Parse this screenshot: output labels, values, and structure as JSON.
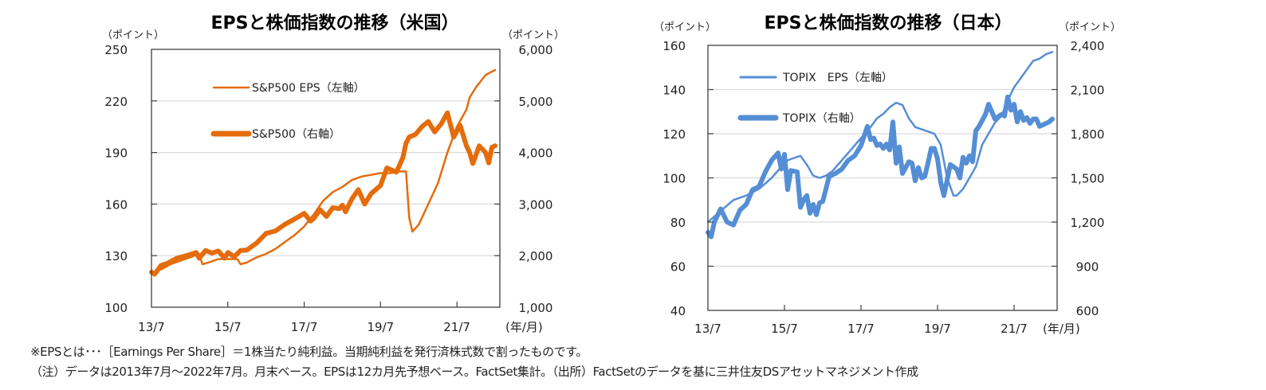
{
  "chart_data": [
    {
      "type": "line",
      "title": "EPSと株価指数の推移（米国）",
      "left_unit": "（ポイント）",
      "right_unit": "（ポイント）",
      "xlabel": "(年/月)",
      "x_ticks": [
        "13/7",
        "15/7",
        "17/7",
        "19/7",
        "21/7"
      ],
      "x_range": [
        "2013-07",
        "2022-07"
      ],
      "left_axis": {
        "min": 100,
        "max": 250,
        "ticks": [
          "250",
          "220",
          "190",
          "160",
          "130",
          "100"
        ],
        "tick_values": [
          250,
          220,
          190,
          160,
          130,
          100
        ]
      },
      "right_axis": {
        "min": 1000,
        "max": 6000,
        "ticks": [
          "6,000",
          "5,000",
          "4,000",
          "3,000",
          "2,000",
          "1,000"
        ],
        "tick_values": [
          6000,
          5000,
          4000,
          3000,
          2000,
          1000
        ]
      },
      "grid": true,
      "color": "#E46C0A",
      "series": [
        {
          "name": "S&P500 EPS（左軸）",
          "axis": "left",
          "months_from_start": [
            0,
            3,
            6,
            9,
            12,
            15,
            16,
            18,
            21,
            24,
            27,
            28,
            30,
            33,
            36,
            39,
            42,
            45,
            48,
            51,
            54,
            57,
            60,
            63,
            66,
            69,
            72,
            75,
            78,
            80,
            81,
            82,
            84,
            87,
            90,
            93,
            96,
            99,
            100,
            102,
            105,
            108
          ],
          "values": [
            120,
            122,
            125,
            127,
            129,
            131,
            125,
            126,
            128,
            128,
            128,
            125,
            126,
            129,
            131,
            134,
            138,
            142,
            147,
            154,
            162,
            167,
            170,
            174,
            176,
            177,
            178,
            178,
            179,
            179,
            152,
            144,
            148,
            160,
            172,
            190,
            205,
            215,
            222,
            228,
            235,
            238
          ]
        },
        {
          "name": "S&P500（右軸）",
          "axis": "right",
          "months_from_start": [
            0,
            1,
            3,
            5,
            8,
            11,
            14,
            15,
            17,
            19,
            21,
            23,
            24,
            26,
            28,
            30,
            33,
            36,
            39,
            42,
            45,
            48,
            50,
            51,
            53,
            55,
            57,
            59,
            60,
            61,
            63,
            65,
            67,
            69,
            72,
            74,
            77,
            79,
            80,
            81,
            83,
            85,
            87,
            89,
            91,
            93,
            95,
            97,
            99,
            100,
            101,
            103,
            105,
            106,
            107,
            108
          ],
          "values": [
            1680,
            1640,
            1810,
            1850,
            1950,
            2000,
            2060,
            1950,
            2100,
            2050,
            2090,
            1950,
            2060,
            1980,
            2100,
            2110,
            2240,
            2430,
            2480,
            2610,
            2710,
            2820,
            2670,
            2720,
            2890,
            2760,
            2930,
            2910,
            2980,
            2850,
            3100,
            3280,
            3000,
            3200,
            3360,
            3700,
            3620,
            3900,
            4180,
            4300,
            4350,
            4500,
            4600,
            4400,
            4550,
            4770,
            4300,
            4530,
            4130,
            4000,
            3785,
            4130,
            4000,
            3800,
            4100,
            4130
          ]
        }
      ]
    },
    {
      "type": "line",
      "title": "EPSと株価指数の推移（日本）",
      "left_unit": "（ポイント）",
      "right_unit": "（ポイント）",
      "xlabel": "(年/月)",
      "x_ticks": [
        "13/7",
        "15/7",
        "17/7",
        "19/7",
        "21/7"
      ],
      "x_range": [
        "2013-07",
        "2022-07"
      ],
      "left_axis": {
        "min": 40,
        "max": 160,
        "ticks": [
          "160",
          "140",
          "120",
          "100",
          "80",
          "60",
          "40"
        ],
        "tick_values": [
          160,
          140,
          120,
          100,
          80,
          60,
          40
        ]
      },
      "right_axis": {
        "min": 600,
        "max": 2400,
        "ticks": [
          "2,400",
          "2,100",
          "1,800",
          "1,500",
          "1,200",
          "900",
          "600"
        ],
        "tick_values": [
          2400,
          2100,
          1800,
          1500,
          1200,
          900,
          600
        ]
      },
      "grid": true,
      "color": "#558ED5",
      "series": [
        {
          "name": "TOPIX　EPS（左軸）",
          "axis": "left",
          "months_from_start": [
            0,
            4,
            8,
            12,
            16,
            20,
            23,
            25,
            27,
            29,
            31,
            33,
            35,
            37,
            39,
            42,
            45,
            48,
            51,
            53,
            55,
            57,
            59,
            61,
            63,
            65,
            67,
            69,
            71,
            73,
            75,
            77,
            78,
            80,
            82,
            84,
            86,
            88,
            90,
            92,
            94,
            96,
            98,
            100,
            102,
            104,
            106,
            108
          ],
          "values": [
            80,
            85,
            90,
            92,
            95,
            100,
            105,
            108,
            109,
            110,
            106,
            101,
            100,
            101,
            103,
            108,
            113,
            118,
            123,
            127,
            129,
            132,
            134,
            133,
            127,
            123,
            122,
            121,
            120,
            115,
            100,
            92,
            92,
            95,
            100,
            105,
            115,
            120,
            125,
            128,
            135,
            141,
            145,
            149,
            153,
            154,
            156,
            157
          ],
          "values_scaled_note": ""
        },
        {
          "name": "TOPIX（右軸）",
          "axis": "right",
          "months_from_start": [
            0,
            1,
            2,
            4,
            6,
            8,
            10,
            12,
            14,
            16,
            18,
            20,
            22,
            23,
            24,
            25,
            26,
            28,
            29,
            30,
            31,
            32,
            33,
            34,
            35,
            36,
            38,
            40,
            42,
            44,
            46,
            48,
            50,
            51,
            52,
            53,
            54,
            55,
            56,
            57,
            58,
            59,
            60,
            61,
            62,
            63,
            64,
            65,
            66,
            67,
            68,
            69,
            70,
            71,
            72,
            73,
            74,
            76,
            78,
            79,
            80,
            81,
            82,
            83,
            84,
            85,
            86,
            87,
            88,
            90,
            92,
            93,
            94,
            95,
            96,
            97,
            98,
            99,
            100,
            101,
            102,
            103,
            104,
            105,
            106,
            107,
            108
          ],
          "values": [
            1130,
            1100,
            1200,
            1290,
            1200,
            1180,
            1280,
            1320,
            1420,
            1440,
            1540,
            1620,
            1670,
            1560,
            1660,
            1420,
            1550,
            1540,
            1300,
            1350,
            1380,
            1260,
            1320,
            1250,
            1330,
            1340,
            1510,
            1530,
            1560,
            1620,
            1650,
            1720,
            1850,
            1760,
            1770,
            1720,
            1730,
            1700,
            1730,
            1690,
            1880,
            1600,
            1710,
            1530,
            1570,
            1610,
            1600,
            1480,
            1570,
            1500,
            1510,
            1600,
            1700,
            1700,
            1630,
            1470,
            1380,
            1590,
            1560,
            1500,
            1640,
            1600,
            1650,
            1610,
            1820,
            1850,
            1890,
            1930,
            2000,
            1900,
            1930,
            1920,
            2050,
            1960,
            2000,
            1880,
            1950,
            1890,
            1910,
            1870,
            1900,
            1900,
            1850,
            1860,
            1870,
            1880,
            1900
          ]
        }
      ]
    }
  ],
  "notes": {
    "line1": "※EPSとは･･･［Earnings Per Share］＝1株当たり純利益。当期純利益を発行済株式数で割ったものです。",
    "line2": "（注）データは2013年7月～2022年7月。月末ベース。EPSは12カ月先予想ベース。FactSet集計。（出所）FactSetのデータを基に三井住友DSアセットマネジメント作成"
  }
}
